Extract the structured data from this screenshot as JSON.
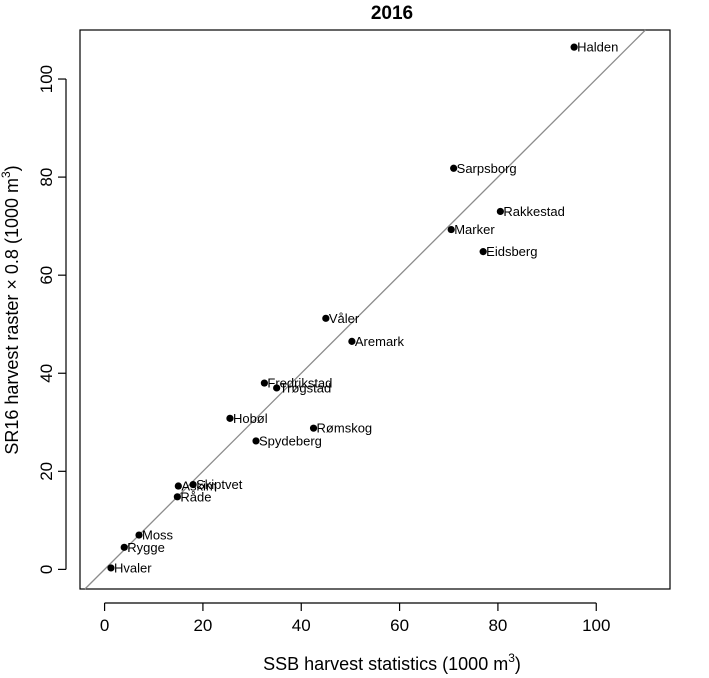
{
  "chart_data": {
    "type": "scatter",
    "title": "2016",
    "xlabel": {
      "prefix": "SSB harvest statistics (1000 m",
      "sup": "3",
      "suffix": ")"
    },
    "ylabel": {
      "prefix": "SR16 harvest raster × 0.8 (1000 m",
      "sup": "3",
      "suffix": ")"
    },
    "xlim": [
      -5,
      115
    ],
    "ylim": [
      -4,
      110
    ],
    "x_ticks": [
      0,
      20,
      40,
      60,
      80,
      100
    ],
    "y_ticks": [
      0,
      20,
      40,
      60,
      80,
      100
    ],
    "grid": false,
    "reference_line": {
      "slope": 1,
      "intercept": 0,
      "color": "#8c8c8c"
    },
    "point_color": "#000000",
    "points": [
      {
        "label": "Halden",
        "x": 95.5,
        "y": 106.5
      },
      {
        "label": "Sarpsborg",
        "x": 71,
        "y": 81.8
      },
      {
        "label": "Rakkestad",
        "x": 80.5,
        "y": 73
      },
      {
        "label": "Marker",
        "x": 70.5,
        "y": 69.3
      },
      {
        "label": "Eidsberg",
        "x": 77,
        "y": 64.8
      },
      {
        "label": "Våler",
        "x": 45,
        "y": 51.2
      },
      {
        "label": "Aremark",
        "x": 50.3,
        "y": 46.5
      },
      {
        "label": "Fredrikstad",
        "x": 32.5,
        "y": 38
      },
      {
        "label": "Trøgstad",
        "x": 35,
        "y": 37
      },
      {
        "label": "Hobøl",
        "x": 25.5,
        "y": 30.8
      },
      {
        "label": "Rømskog",
        "x": 42.5,
        "y": 28.8
      },
      {
        "label": "Spydeberg",
        "x": 30.8,
        "y": 26.2
      },
      {
        "label": "Skiptvet",
        "x": 18,
        "y": 17.3
      },
      {
        "label": "Askim",
        "x": 15,
        "y": 17
      },
      {
        "label": "Råde",
        "x": 14.8,
        "y": 14.8
      },
      {
        "label": "Moss",
        "x": 7,
        "y": 7
      },
      {
        "label": "Rygge",
        "x": 4,
        "y": 4.5
      },
      {
        "label": "Hvaler",
        "x": 1.3,
        "y": 0.3
      }
    ]
  }
}
